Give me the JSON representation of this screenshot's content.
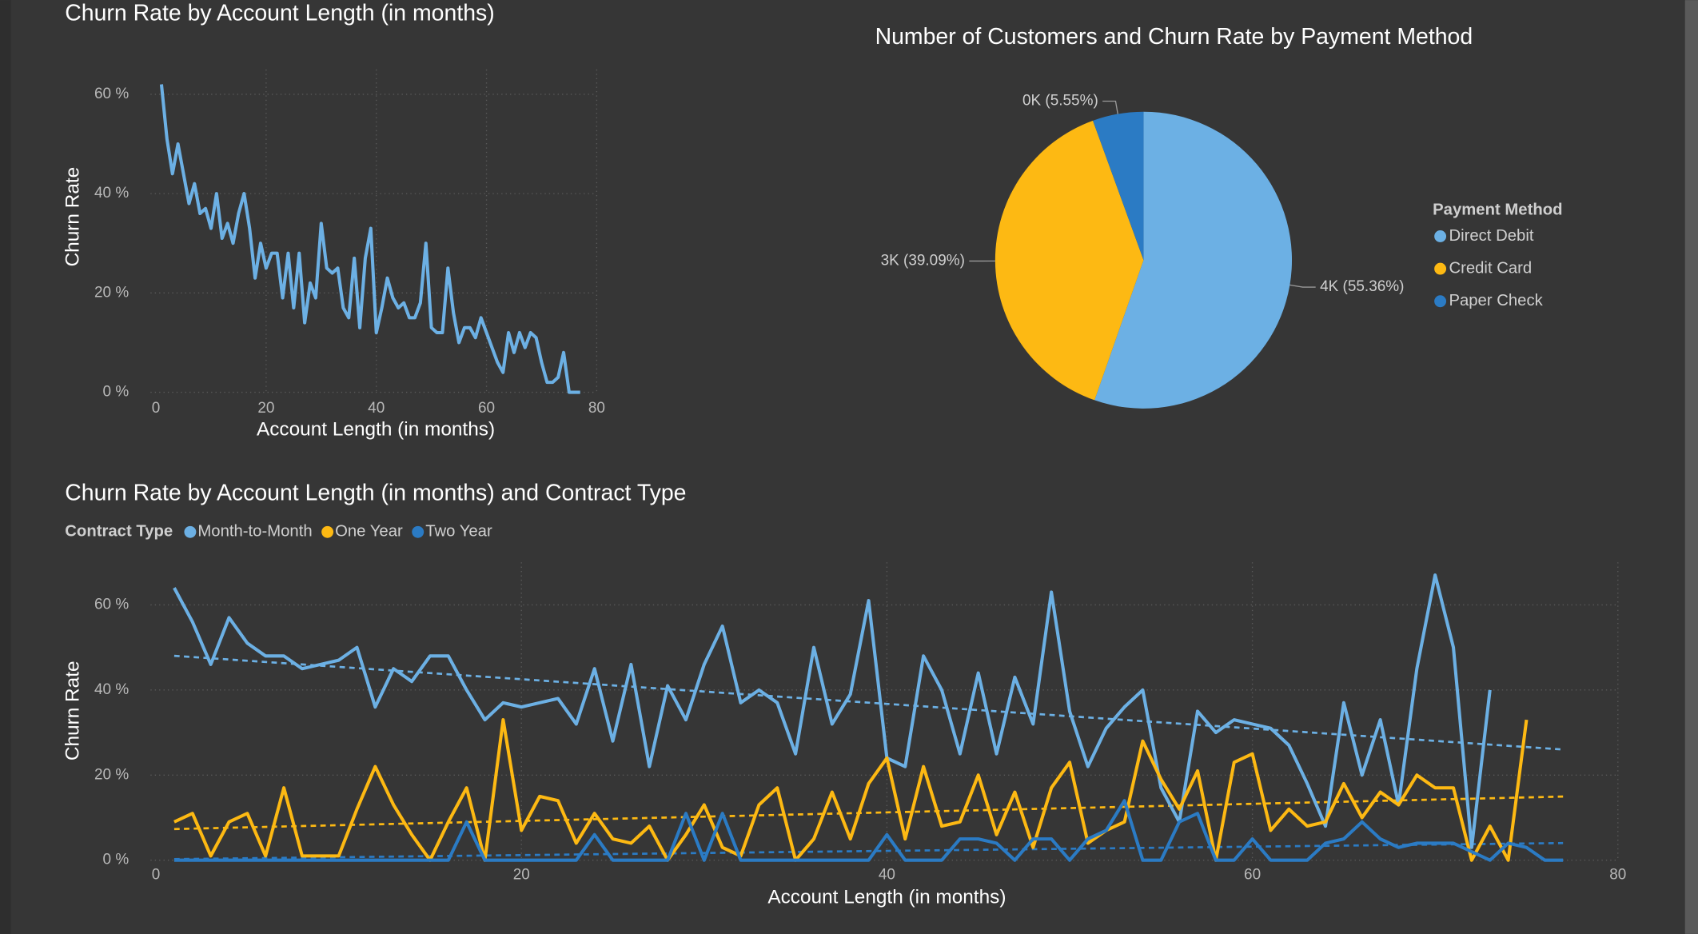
{
  "chart_data": [
    {
      "type": "line",
      "title": "Churn Rate by Account Length (in months)",
      "x_label": "Account Length (in months)",
      "y_label": "Churn Rate",
      "x": [
        1,
        2,
        3,
        4,
        5,
        6,
        7,
        8,
        9,
        10,
        11,
        12,
        13,
        14,
        15,
        16,
        17,
        18,
        19,
        20,
        21,
        22,
        23,
        24,
        25,
        26,
        27,
        28,
        29,
        30,
        31,
        32,
        33,
        34,
        35,
        36,
        37,
        38,
        39,
        40,
        41,
        42,
        43,
        44,
        45,
        46,
        47,
        48,
        49,
        50,
        51,
        52,
        53,
        54,
        55,
        56,
        57,
        58,
        59,
        60,
        61,
        62,
        63,
        64,
        65,
        66,
        67,
        68,
        69,
        70,
        71,
        72,
        73,
        74,
        75,
        76,
        77
      ],
      "values": [
        62,
        51,
        44,
        50,
        44,
        38,
        42,
        36,
        37,
        33,
        40,
        31,
        34,
        30,
        36,
        40,
        33,
        23,
        30,
        25,
        28,
        28,
        19,
        28,
        17,
        28,
        14,
        22,
        19,
        34,
        25,
        24,
        25,
        17,
        15,
        27,
        13,
        27,
        33,
        12,
        17,
        23,
        19,
        17,
        18,
        15,
        15,
        18,
        30,
        13,
        12,
        12,
        25,
        16,
        10,
        13,
        13,
        11,
        15,
        12,
        9,
        6,
        4,
        12,
        8,
        12,
        9,
        12,
        11,
        6,
        2,
        2,
        3,
        8,
        0,
        0,
        0
      ],
      "color": "#6cb0e4",
      "xlim": [
        0,
        80
      ],
      "ylim": [
        0,
        65
      ],
      "xticks": [
        0,
        20,
        40,
        60,
        80
      ],
      "yticks": [
        {
          "value": 0,
          "label": "0 %"
        },
        {
          "value": 20,
          "label": "20 %"
        },
        {
          "value": 40,
          "label": "40 %"
        },
        {
          "value": 60,
          "label": "60 %"
        }
      ],
      "grid": true
    },
    {
      "type": "pie",
      "title": "Number of Customers and Churn Rate by Payment Method",
      "legend_title": "Payment Method",
      "legend": "right",
      "categories": [
        "Direct Debit",
        "Credit Card",
        "Paper Check"
      ],
      "values": [
        55.36,
        39.09,
        5.55
      ],
      "value_labels": [
        "4K (55.36%)",
        "3K (39.09%)",
        "0K (5.55%)"
      ],
      "colors": [
        "#6cb0e4",
        "#fdb913",
        "#2b7bc4"
      ]
    },
    {
      "type": "line",
      "title": "Churn Rate by Account Length (in months) and Contract Type",
      "legend_title": "Contract Type",
      "legend": "top-left",
      "x_label": "Account Length (in months)",
      "y_label": "Churn Rate",
      "x": [
        1,
        2,
        3,
        4,
        5,
        6,
        7,
        8,
        9,
        10,
        11,
        12,
        13,
        14,
        15,
        16,
        17,
        18,
        19,
        20,
        21,
        22,
        23,
        24,
        25,
        26,
        27,
        28,
        29,
        30,
        31,
        32,
        33,
        34,
        35,
        36,
        37,
        38,
        39,
        40,
        41,
        42,
        43,
        44,
        45,
        46,
        47,
        48,
        49,
        50,
        51,
        52,
        53,
        54,
        55,
        56,
        57,
        58,
        59,
        60,
        61,
        62,
        63,
        64,
        65,
        66,
        67,
        68,
        69,
        70,
        71,
        72,
        73,
        74,
        75,
        76,
        77
      ],
      "series": [
        {
          "name": "Month-to-Month",
          "color": "#6cb0e4",
          "values": [
            64,
            56,
            46,
            57,
            51,
            48,
            48,
            45,
            46,
            47,
            50,
            36,
            45,
            42,
            48,
            48,
            40,
            33,
            37,
            36,
            37,
            38,
            32,
            45,
            28,
            46,
            22,
            41,
            33,
            46,
            55,
            37,
            40,
            37,
            25,
            50,
            32,
            39,
            61,
            24,
            22,
            48,
            40,
            25,
            44,
            25,
            43,
            32,
            63,
            35,
            22,
            31,
            36,
            40,
            17,
            9,
            35,
            30,
            33,
            32,
            31,
            27,
            18,
            8,
            37,
            20,
            33,
            13,
            45,
            67,
            50,
            3,
            40,
            null,
            null,
            null,
            null
          ]
        },
        {
          "name": "One Year",
          "color": "#fdb913",
          "values": [
            9,
            11,
            1,
            9,
            11,
            1,
            17,
            1,
            1,
            1,
            12,
            22,
            13,
            6,
            0,
            9,
            17,
            0,
            33,
            7,
            15,
            14,
            4,
            11,
            5,
            4,
            8,
            0,
            6,
            13,
            3,
            1,
            13,
            17,
            0,
            5,
            16,
            5,
            18,
            24,
            5,
            22,
            8,
            9,
            20,
            6,
            16,
            3,
            17,
            23,
            4,
            7,
            9,
            28,
            19,
            12,
            21,
            0,
            23,
            25,
            7,
            12,
            8,
            9,
            18,
            10,
            16,
            13,
            20,
            17,
            17,
            0,
            8,
            0,
            33,
            null,
            null
          ]
        },
        {
          "name": "Two Year",
          "color": "#2b7bc4",
          "values": [
            0,
            0,
            0,
            0,
            0,
            0,
            0,
            0,
            0,
            0,
            0,
            0,
            0,
            0,
            0,
            0,
            9,
            0,
            0,
            0,
            0,
            0,
            0,
            6,
            0,
            0,
            0,
            0,
            11,
            0,
            11,
            0,
            0,
            0,
            0,
            0,
            0,
            0,
            0,
            6,
            0,
            0,
            0,
            5,
            5,
            4,
            0,
            5,
            5,
            0,
            5,
            7,
            14,
            0,
            0,
            9,
            11,
            0,
            0,
            5,
            0,
            0,
            0,
            4,
            5,
            9,
            5,
            3,
            4,
            4,
            4,
            2,
            0,
            4,
            3,
            0,
            0
          ]
        }
      ],
      "xlim": [
        0,
        80
      ],
      "ylim": [
        0,
        70
      ],
      "xticks": [
        0,
        20,
        40,
        60,
        80
      ],
      "yticks": [
        {
          "value": 0,
          "label": "0 %"
        },
        {
          "value": 20,
          "label": "20 %"
        },
        {
          "value": 40,
          "label": "40 %"
        },
        {
          "value": 60,
          "label": "60 %"
        }
      ],
      "grid": true,
      "trend_lines": true
    }
  ]
}
